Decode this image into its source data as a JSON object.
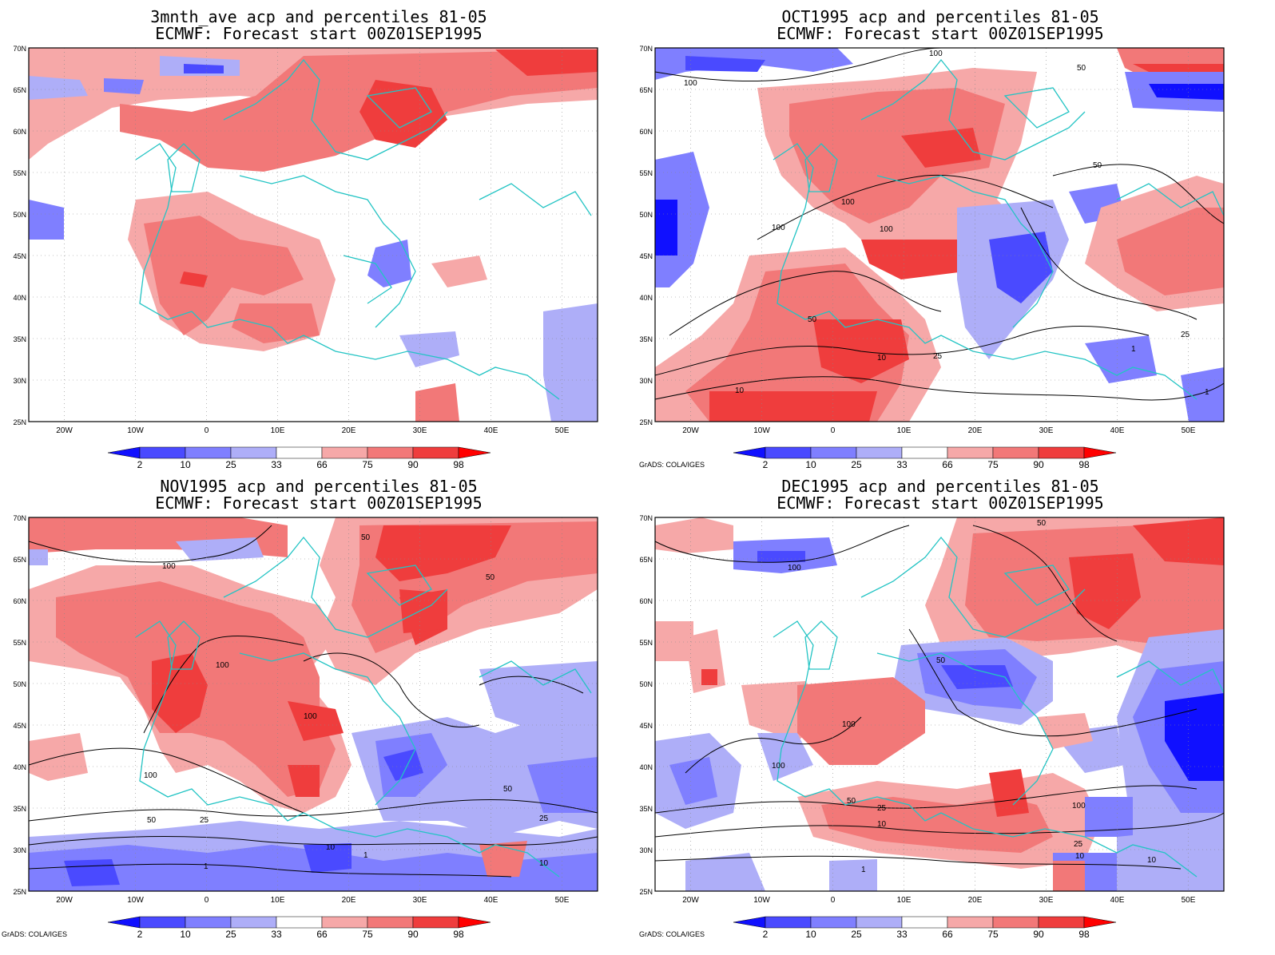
{
  "colors": {
    "blue_98": "#1010ff",
    "blue_90": "#4a4aff",
    "blue_75": "#7f7fff",
    "blue_66": "#aeaef8",
    "red_66": "#f6a8a8",
    "red_75": "#f27878",
    "red_90": "#ef3d3d",
    "red_98": "#ff0000",
    "coast": "#23c4c4",
    "contour": "#000000",
    "grid": "#888888"
  },
  "colorbar_labels": [
    "2",
    "10",
    "25",
    "33",
    "66",
    "75",
    "90",
    "98"
  ],
  "axes": {
    "x_labels": [
      "20W",
      "10W",
      "0",
      "10E",
      "20E",
      "30E",
      "40E",
      "50E"
    ],
    "y_labels": [
      "70N",
      "65N",
      "60N",
      "55N",
      "50N",
      "45N",
      "40N",
      "35N",
      "30N",
      "25N"
    ]
  },
  "credit": "GrADS: COLA/IGES",
  "panels": [
    {
      "title_line1": "3mnth_ave acp and percentiles 81-05",
      "title_line2": "ECMWF: Forecast start 00Z01SEP1995",
      "contour_labels": []
    },
    {
      "title_line1": "OCT1995 acp and percentiles 81-05",
      "title_line2": "ECMWF: Forecast start 00Z01SEP1995",
      "contour_labels": [
        "100",
        "100",
        "100",
        "100",
        "100",
        "50",
        "50",
        "50",
        "25",
        "25",
        "10",
        "10",
        "1",
        "1"
      ]
    },
    {
      "title_line1": "NOV1995 acp and percentiles 81-05",
      "title_line2": "ECMWF: Forecast start 00Z01SEP1995",
      "contour_labels": [
        "100",
        "100",
        "100",
        "100",
        "50",
        "50",
        "50",
        "50",
        "25",
        "25",
        "10",
        "10",
        "1",
        "1"
      ]
    },
    {
      "title_line1": "DEC1995 acp and percentiles 81-05",
      "title_line2": "ECMWF: Forecast start 00Z01SEP1995",
      "contour_labels": [
        "100",
        "100",
        "100",
        "100",
        "50",
        "50",
        "50",
        "25",
        "25",
        "10",
        "10",
        "10",
        "1"
      ]
    }
  ]
}
